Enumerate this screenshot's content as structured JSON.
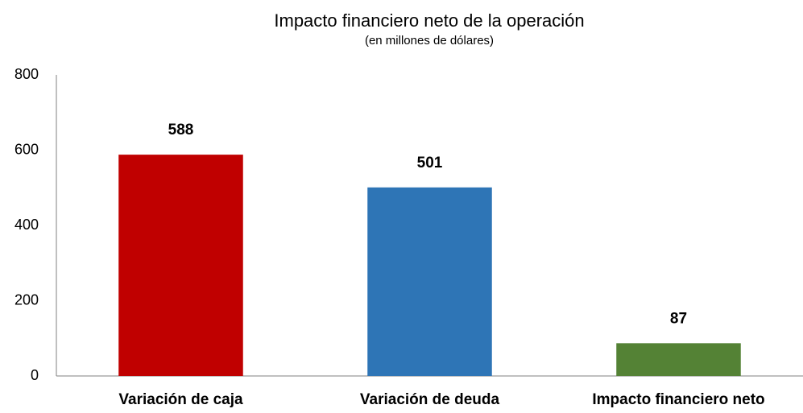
{
  "chart_data": {
    "type": "bar",
    "title": "Impacto financiero neto de la operación",
    "subtitle": "(en millones de dólares)",
    "categories": [
      "Variación de caja",
      "Variación de deuda",
      "Impacto financiero neto"
    ],
    "values": [
      588,
      501,
      87
    ],
    "colors": [
      "#c00000",
      "#2e75b6",
      "#548235"
    ],
    "ylim": [
      0,
      800
    ],
    "yticks": [
      0,
      200,
      400,
      600,
      800
    ],
    "grid": false
  }
}
